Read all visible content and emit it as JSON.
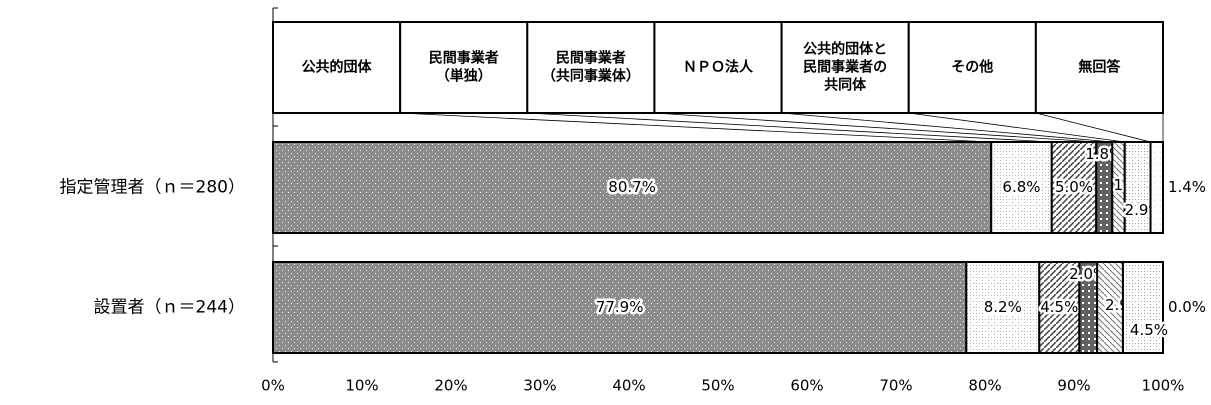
{
  "chart_data": {
    "type": "stacked_bar_horizontal",
    "categories": [
      "指定管理者（ｎ＝280）",
      "設置者（ｎ＝244）"
    ],
    "series": [
      {
        "name": "公共的団体",
        "color": "#8c8c8c",
        "values": [
          80.7,
          77.9
        ],
        "value_labels": [
          "80.7%",
          "77.9%"
        ]
      },
      {
        "name": "民間事業者\n（単独）",
        "color": "#b0b0b0",
        "values": [
          6.8,
          8.2
        ],
        "value_labels": [
          "6.8%",
          "8.2%"
        ]
      },
      {
        "name": "民間事業者\n（共同事業体）",
        "color": "#404040",
        "values": [
          5.0,
          4.5
        ],
        "value_labels": [
          "5.0%",
          "4.5%"
        ]
      },
      {
        "name": "ＮＰＯ法人",
        "color": "#202020",
        "values": [
          1.8,
          2.0
        ],
        "value_labels": [
          "1.8%",
          "2.0%"
        ]
      },
      {
        "name": "公共的団体と\n民間事業者の\n共同体",
        "color": "#707070",
        "values": [
          1.4,
          2.9
        ],
        "value_labels": [
          "1.4%",
          "2.9%"
        ]
      },
      {
        "name": "その他",
        "color": "#a0a0a0",
        "values": [
          2.9,
          4.5
        ],
        "value_labels": [
          "2.9%",
          "4.5%"
        ]
      },
      {
        "name": "無回答",
        "color": "#d0d0d0",
        "values": [
          1.4,
          0.0
        ],
        "value_labels": [
          "1.4%",
          "0.0%"
        ]
      }
    ],
    "xlim": [
      0,
      100
    ],
    "xticks": [
      {
        "value": 0,
        "label": "0%"
      },
      {
        "value": 10,
        "label": "10%"
      },
      {
        "value": 20,
        "label": "20%"
      },
      {
        "value": 30,
        "label": "30%"
      },
      {
        "value": 40,
        "label": "40%"
      },
      {
        "value": 50,
        "label": "50%"
      },
      {
        "value": 60,
        "label": "60%"
      },
      {
        "value": 70,
        "label": "70%"
      },
      {
        "value": 80,
        "label": "80%"
      },
      {
        "value": 90,
        "label": "90%"
      },
      {
        "value": 100,
        "label": "100%"
      }
    ]
  }
}
